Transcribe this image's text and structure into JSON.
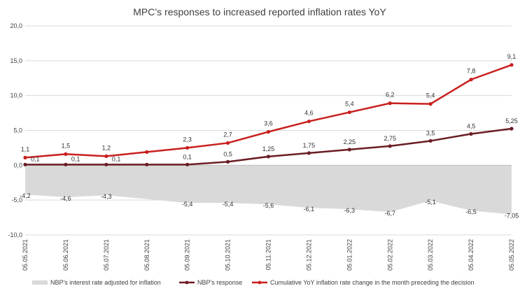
{
  "chart_data": {
    "type": "line",
    "title": "MPC’s responses to increased reported inflation rates YoY",
    "xlabel": "",
    "ylabel": "",
    "ylim": [
      -10,
      20
    ],
    "yticks": [
      "20,0",
      "15,0",
      "10,0",
      "5,0",
      "0,0",
      "-5,0",
      "-10,0"
    ],
    "categories": [
      "05.05.2021",
      "05.06.2021",
      "05.07.2021",
      "05.08.2021",
      "05.09.2021",
      "05.10.2021",
      "05.11.2021",
      "05.12.2021",
      "05.01.2022",
      "05.02.2022",
      "05.03.2022",
      "05.04.2022",
      "05.05.2022"
    ],
    "series": [
      {
        "name": "NBP's interest rate adjusted for inflation",
        "kind": "area",
        "color": "#d9d9d9",
        "values": [
          -4.2,
          -4.6,
          -4.3,
          -4.85,
          -5.4,
          -5.4,
          -5.6,
          -6.1,
          -6.3,
          -6.7,
          -5.1,
          -6.5,
          -7.05
        ],
        "labels": [
          "-4,2",
          "-4,6",
          "-4,3",
          "",
          "-5,4",
          "-5,4",
          "-5,6",
          "-6,1",
          "-6,3",
          "-6,7",
          "-5,1",
          "-6,5",
          "-7,05"
        ]
      },
      {
        "name": "NBP's response",
        "kind": "line",
        "color": "#6b1d24",
        "values": [
          0.1,
          0.1,
          0.1,
          0.1,
          0.1,
          0.5,
          1.25,
          1.75,
          2.25,
          2.75,
          3.5,
          4.5,
          5.25
        ],
        "labels": [
          "0,1",
          "0,1",
          "0,1",
          "",
          "0,1",
          "0,5",
          "1,25",
          "1,75",
          "2,25",
          "2,75",
          "3,5",
          "4,5",
          "5,25"
        ]
      },
      {
        "name": "Cumulative YoY inflation rate change in the month preceding the decision",
        "kind": "line",
        "color": "#c8201f",
        "values": [
          1.1,
          1.5,
          1.2,
          1.75,
          2.3,
          2.7,
          3.6,
          4.6,
          5.4,
          6.2,
          5.4,
          7.8,
          9.1
        ],
        "plot_values": [
          1.1,
          1.6,
          1.3,
          1.9,
          2.5,
          3.2,
          4.8,
          6.3,
          7.6,
          8.9,
          8.8,
          12.3,
          14.4
        ],
        "labels": [
          "1,1",
          "1,5",
          "1,2",
          "",
          "2,3",
          "2,7",
          "3,6",
          "4,6",
          "5,4",
          "6,2",
          "5,4",
          "7,8",
          "9,1"
        ]
      }
    ],
    "grid": true,
    "legend_position": "bottom"
  }
}
